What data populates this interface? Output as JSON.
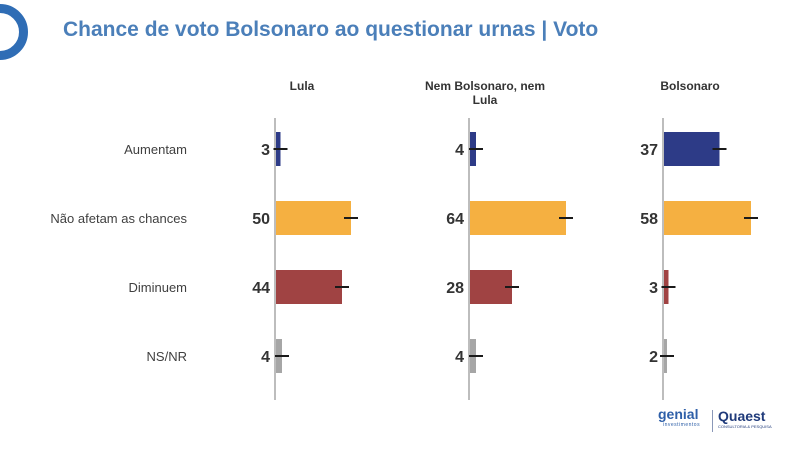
{
  "header": {
    "title": "Chance de voto Bolsonaro ao questionar urnas | Voto"
  },
  "logos": {
    "genial": "genial",
    "genial_sub": "investimentos",
    "quaest": "Quaest",
    "quaest_sub": "CONSULTORIA & PESQUISA"
  },
  "chart_data": {
    "type": "bar",
    "orientation": "horizontal",
    "panels": [
      "Lula",
      "Nem Bolsonaro, nem Lula",
      "Bolsonaro"
    ],
    "categories": [
      "Aumentam",
      "Não afetam as chances",
      "Diminuem",
      "NS/NR"
    ],
    "values": [
      [
        3,
        50,
        44,
        4
      ],
      [
        4,
        64,
        28,
        4
      ],
      [
        37,
        58,
        3,
        2
      ]
    ],
    "error_bars": true,
    "colors": {
      "Aumentam": "#2d3b87",
      "Não afetam as chances": "#f5b041",
      "Diminuem": "#a04343",
      "NS/NR": "#a6a6a6"
    },
    "legend": "none",
    "grid": false
  }
}
